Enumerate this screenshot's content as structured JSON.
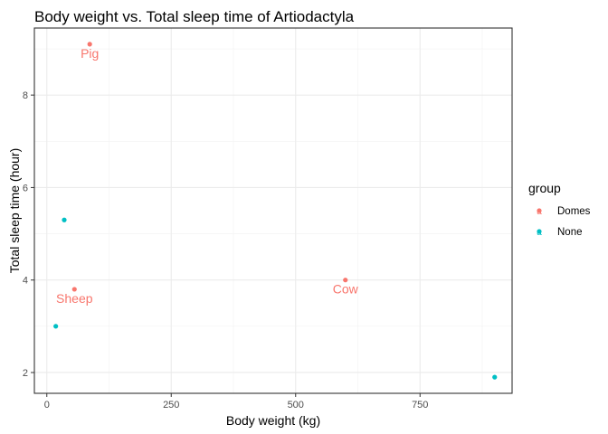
{
  "chart_data": {
    "type": "scatter",
    "title": "Body weight vs. Total sleep time of Artiodactyla",
    "xlabel": "Body weight (kg)",
    "ylabel": "Total sleep time (hour)",
    "xlim": [
      -25,
      935
    ],
    "ylim": [
      1.55,
      9.45
    ],
    "x_ticks": [
      0,
      250,
      500,
      750
    ],
    "y_ticks": [
      2,
      4,
      6,
      8
    ],
    "x_minor_ticks": [
      125,
      375,
      625,
      875
    ],
    "y_minor_ticks": [
      3,
      5,
      7,
      9
    ],
    "grid": true,
    "legend": {
      "title": "group",
      "position": "right",
      "entries": [
        {
          "label": "Domes",
          "color": "#F8766D"
        },
        {
          "label": "None",
          "color": "#00BFC4"
        }
      ]
    },
    "series": [
      {
        "name": "Domes",
        "color": "#F8766D",
        "points": [
          {
            "x": 86.25,
            "y": 9.1,
            "label": "Pig"
          },
          {
            "x": 55.5,
            "y": 3.8,
            "label": "Sheep"
          },
          {
            "x": 600,
            "y": 4.0,
            "label": "Cow"
          }
        ]
      },
      {
        "name": "None",
        "color": "#00BFC4",
        "points": [
          {
            "x": 35,
            "y": 5.3
          },
          {
            "x": 18,
            "y": 3.0
          },
          {
            "x": 900,
            "y": 1.9
          }
        ]
      }
    ]
  }
}
